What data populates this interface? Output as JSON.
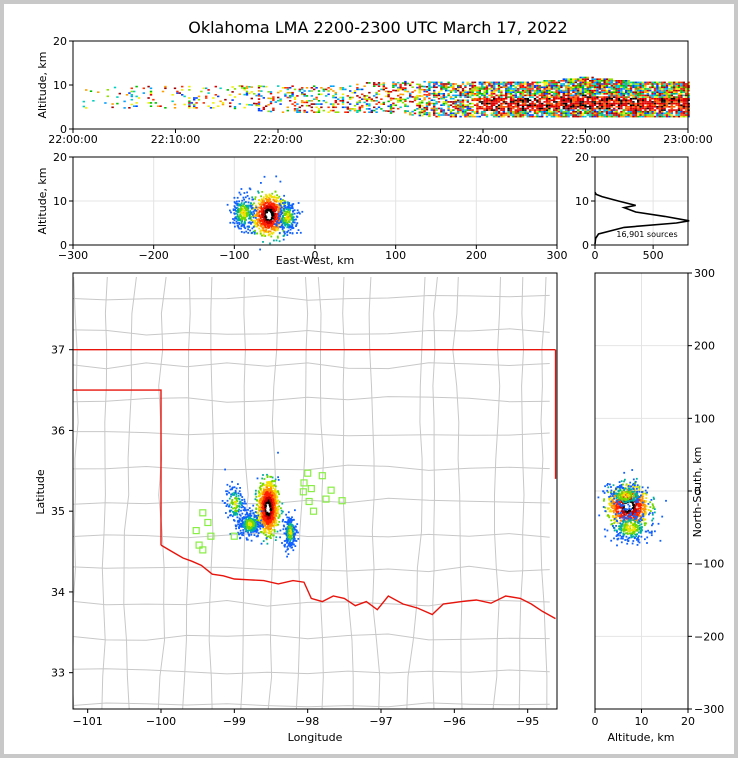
{
  "title": "Oklahoma LMA 2200-2300 UTC March 17, 2022",
  "sources_label": "16,901 sources",
  "colors": {
    "state_border": "#e8140c",
    "county_lines": "#c8c8c8",
    "stations": "#88ee44",
    "frame": "#c8c8c8"
  },
  "chart_data": [
    {
      "id": "altitude-time",
      "type": "scatter",
      "ylabel": "Altitude, km",
      "xlabel": "",
      "ylim": [
        0,
        20
      ],
      "yticks": [
        "0",
        "10",
        "20"
      ],
      "xticks": [
        "22:00:00",
        "22:10:00",
        "22:20:00",
        "22:30:00",
        "22:40:00",
        "22:50:00",
        "23:00:00"
      ],
      "x_range_minutes": [
        0,
        60
      ],
      "density_profile": {
        "minutes": [
          0,
          5,
          10,
          15,
          20,
          25,
          30,
          35,
          40,
          45,
          50,
          55,
          60
        ],
        "relative_density": [
          0.05,
          0.12,
          0.15,
          0.18,
          0.3,
          0.35,
          0.4,
          0.6,
          0.85,
          0.95,
          1.0,
          1.0,
          1.0
        ],
        "altitude_low_km": [
          4,
          5,
          5,
          5,
          4,
          4,
          4,
          3,
          3,
          3,
          3,
          3,
          3
        ],
        "altitude_high_km": [
          9,
          10,
          10,
          10,
          10,
          10,
          11,
          11,
          11,
          11,
          12,
          11,
          11
        ]
      }
    },
    {
      "id": "altitude-eastwest",
      "type": "scatter",
      "xlabel": "East-West, km",
      "ylabel": "Altitude, km",
      "xlim": [
        -300,
        300
      ],
      "ylim": [
        0,
        20
      ],
      "xticks": [
        "−300",
        "−200",
        "−100",
        "0",
        "100",
        "200",
        "300"
      ],
      "yticks": [
        "0",
        "10",
        "20"
      ],
      "clusters": [
        {
          "x": -58,
          "y": 7,
          "sx": 10,
          "sy": 2.3,
          "weight": 1.0
        },
        {
          "x": -90,
          "y": 7.5,
          "sx": 7,
          "sy": 2,
          "weight": 0.35
        },
        {
          "x": -35,
          "y": 6.5,
          "sx": 6,
          "sy": 1.7,
          "weight": 0.3
        }
      ]
    },
    {
      "id": "altitude-histogram",
      "type": "line",
      "xlabel": "",
      "ylabel": "",
      "xlim": [
        0,
        800
      ],
      "ylim": [
        0,
        20
      ],
      "xticks": [
        "0",
        "500"
      ],
      "yticks": [
        "0",
        "10",
        "20"
      ],
      "x": [
        0,
        5,
        30,
        250,
        700,
        810,
        600,
        350,
        250,
        350,
        200,
        60,
        10,
        0
      ],
      "y": [
        0.2,
        1.5,
        2.5,
        4,
        5,
        5.5,
        6.5,
        7.5,
        8.5,
        9,
        10,
        11,
        11.5,
        12
      ]
    },
    {
      "id": "lat-lon-map",
      "type": "scatter",
      "xlabel": "Longitude",
      "ylabel": "Latitude",
      "xlim": [
        -101.2,
        -94.6
      ],
      "ylim": [
        32.55,
        37.95
      ],
      "xticks": [
        "−101",
        "−100",
        "−99",
        "−98",
        "−97",
        "−96",
        "−95"
      ],
      "yticks": [
        "33",
        "34",
        "35",
        "36",
        "37"
      ],
      "clusters": [
        {
          "x": -98.55,
          "y": 35.05,
          "sx": 0.07,
          "sy": 0.16,
          "weight": 1.0
        },
        {
          "x": -98.8,
          "y": 34.85,
          "sx": 0.08,
          "sy": 0.08,
          "weight": 0.3
        },
        {
          "x": -98.25,
          "y": 34.75,
          "sx": 0.04,
          "sy": 0.1,
          "weight": 0.25
        },
        {
          "x": -99.0,
          "y": 35.1,
          "sx": 0.07,
          "sy": 0.12,
          "weight": 0.15
        }
      ],
      "stations": [
        {
          "lon": -98.0,
          "lat": 35.47
        },
        {
          "lon": -97.8,
          "lat": 35.44
        },
        {
          "lon": -98.05,
          "lat": 35.35
        },
        {
          "lon": -97.95,
          "lat": 35.28
        },
        {
          "lon": -98.06,
          "lat": 35.24
        },
        {
          "lon": -97.68,
          "lat": 35.26
        },
        {
          "lon": -97.75,
          "lat": 35.15
        },
        {
          "lon": -97.53,
          "lat": 35.13
        },
        {
          "lon": -97.98,
          "lat": 35.12
        },
        {
          "lon": -97.92,
          "lat": 35.0
        },
        {
          "lon": -99.43,
          "lat": 34.98
        },
        {
          "lon": -99.36,
          "lat": 34.86
        },
        {
          "lon": -99.52,
          "lat": 34.76
        },
        {
          "lon": -99.32,
          "lat": 34.69
        },
        {
          "lon": -99.0,
          "lat": 34.69
        },
        {
          "lon": -99.48,
          "lat": 34.58
        },
        {
          "lon": -99.43,
          "lat": 34.52
        }
      ]
    },
    {
      "id": "northsouth-altitude",
      "type": "scatter",
      "xlabel": "Altitude, km",
      "ylabel": "North-South, km",
      "xlim": [
        0,
        20
      ],
      "ylim": [
        -300,
        300
      ],
      "xticks": [
        "0",
        "10",
        "20"
      ],
      "yticks": [
        "−300",
        "−200",
        "−100",
        "0",
        "100",
        "200",
        "300"
      ],
      "clusters": [
        {
          "x": 7,
          "y": -20,
          "sx": 2.2,
          "sy": 14,
          "weight": 1.0
        },
        {
          "x": 7.5,
          "y": -50,
          "sx": 2,
          "sy": 10,
          "weight": 0.35
        },
        {
          "x": 6.5,
          "y": -5,
          "sx": 2,
          "sy": 8,
          "weight": 0.3
        }
      ]
    }
  ]
}
